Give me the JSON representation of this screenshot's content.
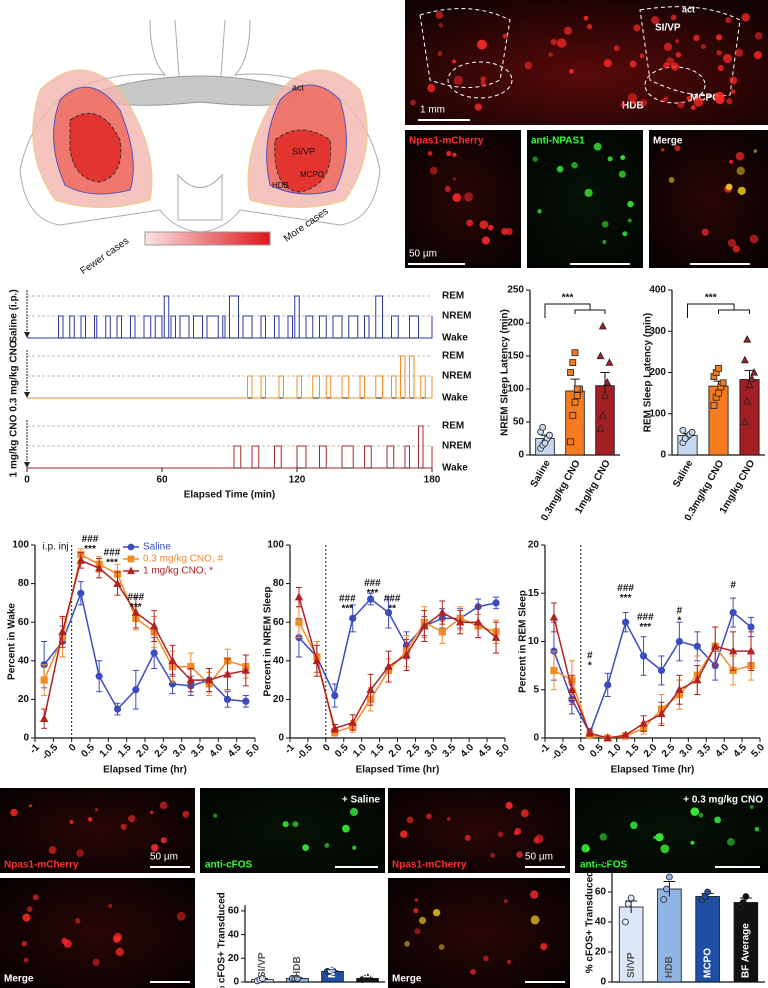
{
  "atlas": {
    "labels": [
      "act",
      "SI/VP",
      "HDB",
      "MCPO"
    ],
    "legend": [
      "Fewer cases",
      "More cases"
    ]
  },
  "histology": {
    "overview_labels": [
      "act",
      "SI/VP",
      "HDB",
      "MCPO"
    ],
    "overview_scale": "1 mm",
    "panels": [
      "Npas1-mCherry",
      "anti-NPAS1",
      "Merge"
    ],
    "scale": "50 µm"
  },
  "cfos_images": {
    "saline": {
      "condition": "+ Saline",
      "labels": [
        "Npas1-mCherry",
        "anti-cFOS",
        "Merge"
      ],
      "scale": "50 µm"
    },
    "cno": {
      "condition": "+ 0.3 mg/kg CNO",
      "labels": [
        "Npas1-mCherry",
        "anti-cFOS",
        "Merge"
      ],
      "scale": "50 µm"
    }
  },
  "chart_data": [
    {
      "type": "hypnogram",
      "xlabel": "Elapsed Time (min)",
      "xlim": [
        0,
        180
      ],
      "xticks": [
        0,
        60,
        120,
        180
      ],
      "state_labels": [
        "REM",
        "NREM",
        "Wake"
      ],
      "series": [
        {
          "name": "Saline (i.p.)",
          "color": "#2e3a9e",
          "x": [
            0,
            14,
            16,
            19,
            21,
            24,
            26,
            30,
            31,
            35,
            37,
            40,
            42,
            46,
            48,
            52,
            55,
            57,
            60,
            61,
            63,
            64,
            66,
            68,
            72,
            74,
            78,
            80,
            85,
            87,
            88,
            90,
            94,
            96,
            100,
            104,
            106,
            110,
            112,
            116,
            118,
            119,
            121,
            124,
            127,
            130,
            133,
            136,
            140,
            143,
            147,
            150,
            152,
            155,
            158,
            162,
            165,
            170,
            174,
            180
          ],
          "values": [
            "Wake",
            "NREM",
            "Wake",
            "NREM",
            "Wake",
            "NREM",
            "Wake",
            "NREM",
            "Wake",
            "NREM",
            "Wake",
            "NREM",
            "Wake",
            "NREM",
            "Wake",
            "NREM",
            "Wake",
            "NREM",
            "Wake",
            "REM",
            "Wake",
            "NREM",
            "Wake",
            "NREM",
            "Wake",
            "NREM",
            "Wake",
            "NREM",
            "Wake",
            "NREM",
            "Wake",
            "REM",
            "Wake",
            "NREM",
            "Wake",
            "NREM",
            "Wake",
            "NREM",
            "Wake",
            "NREM",
            "Wake",
            "REM",
            "Wake",
            "NREM",
            "Wake",
            "NREM",
            "Wake",
            "NREM",
            "Wake",
            "NREM",
            "Wake",
            "NREM",
            "Wake",
            "REM",
            "Wake",
            "NREM",
            "Wake",
            "NREM",
            "Wake",
            "NREM"
          ]
        },
        {
          "name": "0.3 mg/kg CNO",
          "color": "#f28c28",
          "x": [
            0,
            98,
            100,
            104,
            106,
            112,
            114,
            120,
            122,
            127,
            130,
            133,
            135,
            140,
            143,
            148,
            150,
            155,
            158,
            162,
            164,
            166,
            168,
            170,
            172,
            175,
            177,
            180
          ],
          "values": [
            "Wake",
            "NREM",
            "Wake",
            "NREM",
            "Wake",
            "NREM",
            "Wake",
            "NREM",
            "Wake",
            "NREM",
            "Wake",
            "NREM",
            "Wake",
            "NREM",
            "Wake",
            "NREM",
            "Wake",
            "NREM",
            "Wake",
            "NREM",
            "Wake",
            "REM",
            "Wake",
            "REM",
            "Wake",
            "NREM",
            "Wake",
            "NREM"
          ]
        },
        {
          "name": "1 mg/kg CNO",
          "color": "#a52a2a",
          "x": [
            0,
            92,
            95,
            100,
            103,
            110,
            113,
            120,
            124,
            130,
            133,
            140,
            145,
            150,
            153,
            160,
            163,
            168,
            170,
            174,
            176,
            180
          ],
          "values": [
            "Wake",
            "NREM",
            "Wake",
            "NREM",
            "Wake",
            "NREM",
            "Wake",
            "NREM",
            "Wake",
            "NREM",
            "Wake",
            "NREM",
            "Wake",
            "NREM",
            "Wake",
            "NREM",
            "Wake",
            "NREM",
            "Wake",
            "REM",
            "Wake",
            "NREM"
          ]
        }
      ]
    },
    {
      "type": "bar",
      "ylabel": "NREM Sleep Latency (min)",
      "categories": [
        "Saline",
        "0.3mg/kg CNO",
        "1mg/kg CNO"
      ],
      "values": [
        25,
        97,
        105
      ],
      "errors": [
        5,
        18,
        20
      ],
      "colors": [
        "#c6d9f1",
        "#f47b20",
        "#a31f24"
      ],
      "markers": [
        "circle",
        "square",
        "triangle"
      ],
      "points": [
        [
          10,
          15,
          20,
          25,
          30,
          35,
          42,
          18
        ],
        [
          20,
          60,
          80,
          90,
          100,
          125,
          140,
          155,
          100
        ],
        [
          40,
          60,
          90,
          110,
          140,
          150,
          195
        ]
      ],
      "ylim": [
        0,
        250
      ],
      "yticks": [
        0,
        50,
        100,
        150,
        200,
        250
      ],
      "annotation": "***"
    },
    {
      "type": "bar",
      "ylabel": "REM Sleep Latency (min)",
      "categories": [
        "Saline",
        "0.3mg/kg CNO",
        "1mg/kg CNO"
      ],
      "values": [
        47,
        167,
        183
      ],
      "errors": [
        5,
        12,
        22
      ],
      "colors": [
        "#c6d9f1",
        "#f47b20",
        "#a31f24"
      ],
      "markers": [
        "circle",
        "square",
        "triangle"
      ],
      "points": [
        [
          30,
          40,
          45,
          50,
          55,
          60,
          40
        ],
        [
          120,
          140,
          150,
          165,
          175,
          190,
          200,
          210
        ],
        [
          80,
          130,
          170,
          185,
          200,
          230,
          280,
          170
        ]
      ],
      "ylim": [
        0,
        400
      ],
      "yticks": [
        0,
        100,
        200,
        300,
        400
      ],
      "annotation": "***"
    },
    {
      "type": "line",
      "ylabel": "Percent in Wake",
      "xlabel": "Elapsed Time (hr)",
      "legend": true,
      "vline": 0,
      "vline_label": "i.p. inj",
      "x": [
        -0.75,
        -0.25,
        0.25,
        0.75,
        1.25,
        1.75,
        2.25,
        2.75,
        3.25,
        3.75,
        4.25,
        4.75
      ],
      "xlim": [
        -1,
        5
      ],
      "xticks": [
        -1,
        -0.5,
        0,
        0.5,
        {
          "value": 1,
          "label": "1.0"
        },
        1.5,
        {
          "value": 2,
          "label": "2.0"
        },
        2.5,
        {
          "value": 3,
          "label": "3.0"
        },
        3.5,
        {
          "value": 4,
          "label": "4.0"
        },
        4.5,
        {
          "value": 5,
          "label": "5.0"
        }
      ],
      "ylim": [
        0,
        100
      ],
      "yticks": [
        0,
        20,
        40,
        60,
        80,
        100
      ],
      "series": [
        {
          "name": "Saline",
          "color": "#3b4cc0",
          "marker": "circle",
          "values": [
            38,
            50,
            75,
            32,
            15,
            25,
            44,
            28,
            27,
            30,
            20,
            19
          ],
          "errors": [
            12,
            8,
            6,
            8,
            3,
            10,
            8,
            5,
            5,
            6,
            4,
            3
          ]
        },
        {
          "name": "0.3 mg/kg CNO, #",
          "color": "#f28c28",
          "marker": "square",
          "values": [
            30,
            52,
            95,
            90,
            85,
            62,
            55,
            37,
            37,
            28,
            40,
            37
          ],
          "errors": [
            8,
            10,
            3,
            4,
            5,
            6,
            8,
            8,
            7,
            6,
            6,
            6
          ]
        },
        {
          "name": "1 mg/kg CNO, *",
          "color": "#b22222",
          "marker": "triangle",
          "values": [
            10,
            55,
            92,
            88,
            80,
            65,
            58,
            40,
            30,
            30,
            33,
            35
          ],
          "errors": [
            5,
            8,
            4,
            5,
            6,
            8,
            8,
            8,
            6,
            6,
            8,
            8
          ]
        }
      ],
      "annotations": [
        {
          "x": 0.5,
          "y": 103,
          "labels": [
            "###",
            "***"
          ]
        },
        {
          "x": 1.1,
          "y": 96,
          "labels": [
            "###",
            "***"
          ]
        },
        {
          "x": 1.75,
          "y": 73,
          "labels": [
            "###",
            "***"
          ]
        }
      ]
    },
    {
      "type": "line",
      "ylabel": "Percent in NREM Sleep",
      "xlabel": "Elapsed Time (hr)",
      "vline": 0,
      "x": [
        -0.75,
        -0.25,
        0.25,
        0.75,
        1.25,
        1.75,
        2.25,
        2.75,
        3.25,
        3.75,
        4.25,
        4.75
      ],
      "xlim": [
        -1,
        5
      ],
      "xticks": [
        -1,
        -0.5,
        0,
        0.5,
        {
          "value": 1,
          "label": "1.0"
        },
        1.5,
        {
          "value": 2,
          "label": "2.0"
        },
        2.5,
        {
          "value": 3,
          "label": "3.0"
        },
        3.5,
        {
          "value": 4,
          "label": "4.0"
        },
        4.5,
        {
          "value": 5,
          "label": "5.0"
        }
      ],
      "ylim": [
        0,
        100
      ],
      "yticks": [
        0,
        20,
        40,
        60,
        80,
        100
      ],
      "series": [
        {
          "color": "#3b4cc0",
          "marker": "circle",
          "values": [
            52,
            42,
            22,
            62,
            72,
            65,
            48,
            58,
            62,
            62,
            68,
            70
          ],
          "errors": [
            10,
            8,
            6,
            7,
            3,
            8,
            7,
            5,
            5,
            5,
            4,
            3
          ]
        },
        {
          "color": "#f28c28",
          "marker": "square",
          "values": [
            60,
            42,
            3,
            6,
            20,
            35,
            45,
            60,
            55,
            62,
            58,
            55
          ],
          "errors": [
            8,
            8,
            2,
            3,
            6,
            6,
            8,
            8,
            6,
            6,
            6,
            6
          ]
        },
        {
          "color": "#b22222",
          "marker": "triangle",
          "values": [
            73,
            40,
            5,
            8,
            25,
            37,
            43,
            58,
            65,
            60,
            60,
            52
          ],
          "errors": [
            5,
            8,
            2,
            4,
            8,
            8,
            8,
            8,
            6,
            6,
            8,
            8
          ]
        }
      ],
      "annotations": [
        {
          "x": 0.6,
          "y": 72,
          "labels": [
            "###",
            "***"
          ]
        },
        {
          "x": 1.3,
          "y": 80,
          "labels": [
            "###",
            "***"
          ]
        },
        {
          "x": 1.85,
          "y": 72,
          "labels": [
            "###",
            "**"
          ]
        }
      ]
    },
    {
      "type": "line",
      "ylabel": "Percent in REM Sleep",
      "xlabel": "Elapsed Time (hr)",
      "vline": 0,
      "x": [
        -0.75,
        -0.25,
        0.25,
        0.75,
        1.25,
        1.75,
        2.25,
        2.75,
        3.25,
        3.75,
        4.25,
        4.75
      ],
      "xlim": [
        -1,
        5
      ],
      "xticks": [
        -1,
        -0.5,
        0,
        0.5,
        {
          "value": 1,
          "label": "1.0"
        },
        1.5,
        {
          "value": 2,
          "label": "2.0"
        },
        2.5,
        {
          "value": 3,
          "label": "3.0"
        },
        3.5,
        {
          "value": 4,
          "label": "4.0"
        },
        4.5,
        {
          "value": 5,
          "label": "5.0"
        }
      ],
      "ylim": [
        0,
        20
      ],
      "yticks": [
        0,
        5,
        10,
        15,
        20
      ],
      "series": [
        {
          "color": "#3b4cc0",
          "marker": "circle",
          "values": [
            9,
            4,
            0.5,
            5.5,
            12,
            8.5,
            7,
            10,
            9.5,
            7.5,
            13,
            11.5
          ],
          "errors": [
            3,
            1.5,
            0.5,
            1.2,
            1,
            2,
            1.5,
            2,
            1.5,
            1.5,
            1.5,
            1
          ]
        },
        {
          "color": "#f28c28",
          "marker": "square",
          "values": [
            7,
            6,
            0.3,
            0,
            0.2,
            1,
            3,
            4.5,
            6.5,
            9.5,
            7,
            7.5
          ],
          "errors": [
            2,
            2,
            0.3,
            0,
            0.2,
            0.6,
            1.5,
            1.5,
            2,
            2,
            1.5,
            1.5
          ]
        },
        {
          "color": "#b22222",
          "marker": "triangle",
          "values": [
            12.5,
            5,
            0.5,
            0,
            0.3,
            1.5,
            2.5,
            5,
            6,
            9.5,
            9,
            9
          ],
          "errors": [
            1.5,
            1.5,
            0.3,
            0,
            0.2,
            0.8,
            1.2,
            1.5,
            1.5,
            2,
            2,
            2
          ]
        }
      ],
      "annotations": [
        {
          "x": 0.25,
          "y": 8.5,
          "labels": [
            "#",
            "*"
          ]
        },
        {
          "x": 1.25,
          "y": 15.5,
          "labels": [
            "###",
            "***"
          ]
        },
        {
          "x": 1.8,
          "y": 12.5,
          "labels": [
            "###",
            "***"
          ]
        },
        {
          "x": 2.75,
          "y": 13.2,
          "labels": [
            "#",
            "*"
          ]
        },
        {
          "x": 4.25,
          "y": 15.8,
          "labels": [
            "#"
          ]
        }
      ]
    },
    {
      "type": "bar",
      "ylabel": "% cFOS+ Transduced",
      "categories": [
        "SI/VP",
        "HDB",
        "MCPO",
        "BF Average"
      ],
      "values": [
        2,
        3,
        9,
        3
      ],
      "errors": [
        1,
        0.5,
        0.5,
        0.5
      ],
      "colors": [
        "#dbe7f7",
        "#8fb4e3",
        "#1f4ea3",
        "#111111"
      ],
      "markers": [
        "circle",
        "circle",
        "circle",
        "circle"
      ],
      "points": [
        [
          1,
          2,
          3
        ],
        [
          3,
          3,
          3
        ],
        [
          9,
          9,
          10
        ],
        [
          2,
          3,
          4
        ]
      ],
      "ylim": [
        0,
        65
      ],
      "yticks": [
        0,
        20,
        40,
        60
      ]
    },
    {
      "type": "bar",
      "ylabel": "% cFOS+ Transduced",
      "categories": [
        "SI/VP",
        "HDB",
        "MCPO",
        "BF Average"
      ],
      "values": [
        50,
        62,
        57,
        53
      ],
      "errors": [
        4,
        5,
        2,
        3
      ],
      "colors": [
        "#dbe7f7",
        "#8fb4e3",
        "#1f4ea3",
        "#111111"
      ],
      "markers": [
        "circle",
        "circle",
        "circle",
        "circle"
      ],
      "points": [
        [
          40,
          52,
          56
        ],
        [
          55,
          62,
          70
        ],
        [
          55,
          57,
          60
        ],
        [
          50,
          53,
          57
        ]
      ],
      "ylim": [
        0,
        80
      ],
      "yticks": [
        0,
        20,
        40,
        60,
        80
      ]
    }
  ]
}
